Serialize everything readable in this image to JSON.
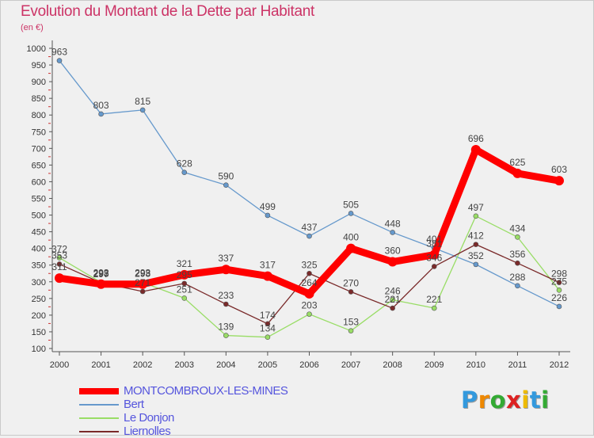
{
  "title": "Evolution du Montant de la Dette par Habitant",
  "subtitle": "(en €)",
  "logo": "Proxiti",
  "chart_data": {
    "type": "line",
    "x": [
      "2000",
      "2001",
      "2002",
      "2003",
      "2004",
      "2005",
      "2006",
      "2007",
      "2008",
      "2009",
      "2010",
      "2011",
      "2012"
    ],
    "ylim": [
      100,
      1000
    ],
    "yticks": [
      100,
      150,
      200,
      250,
      300,
      350,
      400,
      450,
      500,
      550,
      600,
      650,
      700,
      750,
      800,
      850,
      900,
      950,
      1000
    ],
    "grid": false,
    "legend_position": "bottom-left",
    "series": [
      {
        "name": "MONTCOMBROUX-LES-MINES",
        "color": "#ff0000",
        "values": [
          311,
          293,
          293,
          321,
          337,
          317,
          264,
          400,
          360,
          381,
          696,
          625,
          603
        ]
      },
      {
        "name": "Bert",
        "color": "#6699cc",
        "values": [
          963,
          803,
          815,
          628,
          590,
          499,
          437,
          505,
          448,
          401,
          352,
          288,
          226
        ]
      },
      {
        "name": "Le Donjon",
        "color": "#99dd66",
        "values": [
          372,
          298,
          298,
          251,
          139,
          134,
          203,
          153,
          246,
          221,
          497,
          434,
          275
        ]
      },
      {
        "name": "Liernolles",
        "color": "#7a2a2a",
        "values": [
          353,
          297,
          271,
          295,
          233,
          174,
          325,
          270,
          221,
          346,
          412,
          356,
          298
        ]
      }
    ]
  }
}
